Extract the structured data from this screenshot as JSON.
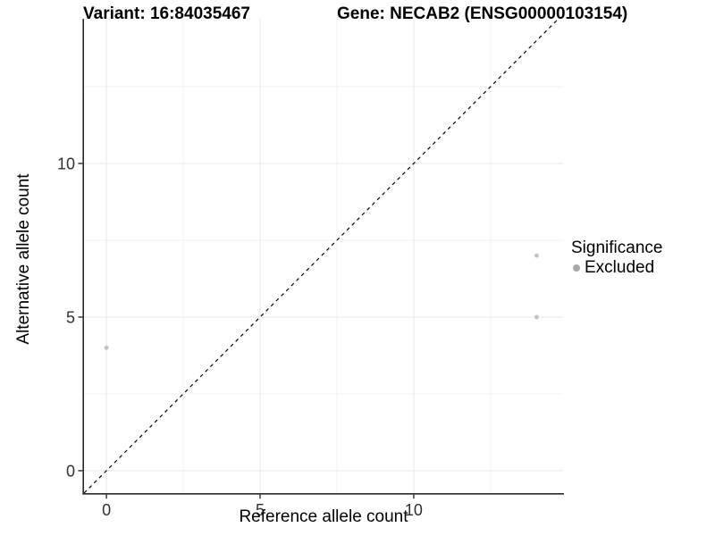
{
  "header": {
    "variant_title": "Variant: 16:84035467",
    "gene_title": "Gene: NECAB2 (ENSG00000103154)"
  },
  "axes": {
    "x_title": "Reference allele count",
    "y_title": "Alternative allele count"
  },
  "legend": {
    "title": "Significance",
    "items": [
      {
        "label": "Excluded",
        "color": "#a8a8a8"
      }
    ]
  },
  "colors": {
    "grid_major": "#e7e7e7",
    "grid_minor": "#f2f2f2",
    "axis_line": "#2b2b2b",
    "tick_text": "#303030",
    "background": "#ffffff"
  },
  "chart_data": {
    "type": "scatter",
    "title": "Variant: 16:84035467   Gene: NECAB2 (ENSG00000103154)",
    "xlabel": "Reference allele count",
    "ylabel": "Alternative allele count",
    "series": [
      {
        "name": "Excluded",
        "color": "#c2c2c2",
        "points": [
          {
            "x": 0,
            "y": 4
          },
          {
            "x": 14,
            "y": 5
          },
          {
            "x": 14,
            "y": 7
          }
        ]
      }
    ],
    "x_ticks": [
      0,
      5,
      10
    ],
    "y_ticks": [
      0,
      5,
      10
    ],
    "x_minor_ticks": [
      2.5,
      7.5,
      12.5
    ],
    "y_minor_ticks": [
      2.5,
      7.5,
      12.5
    ],
    "xlim": [
      -0.73,
      14.86
    ],
    "ylim": [
      -0.73,
      14.71
    ],
    "reference_line": {
      "type": "identity",
      "style": "dashed",
      "color": "#000000"
    },
    "grid": true,
    "legend_position": "right",
    "point_radius": 2.4
  }
}
